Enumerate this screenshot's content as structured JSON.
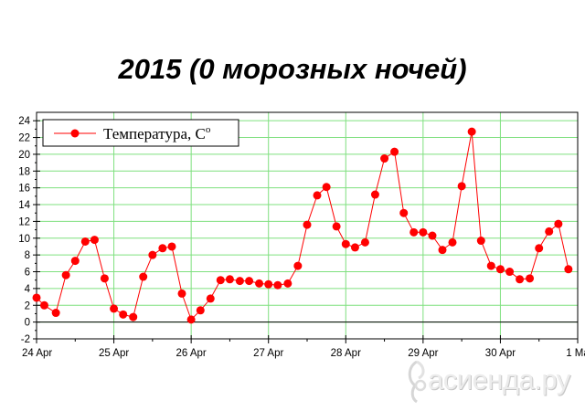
{
  "chart_data": {
    "type": "line",
    "title": "2015 (0 морозных ночей)",
    "xlabel": "",
    "ylabel": "",
    "ylim": [
      -2,
      25
    ],
    "xlim": [
      0,
      7
    ],
    "yticks": [
      -2,
      0,
      2,
      4,
      6,
      8,
      10,
      12,
      14,
      16,
      18,
      20,
      22,
      24
    ],
    "xtick_labels": [
      "24 Apr",
      "25 Apr",
      "26 Apr",
      "27 Apr",
      "28 Apr",
      "29 Apr",
      "30 Apr",
      "1 Ma"
    ],
    "grid": true,
    "legend_position": "top-left",
    "series": [
      {
        "name": "Температура, C",
        "name_superscript": "o",
        "color": "#ff0000",
        "x": [
          0.0,
          0.1,
          0.25,
          0.38,
          0.5,
          0.63,
          0.75,
          0.88,
          1.0,
          1.12,
          1.25,
          1.38,
          1.5,
          1.63,
          1.75,
          1.88,
          2.0,
          2.12,
          2.25,
          2.38,
          2.5,
          2.63,
          2.75,
          2.88,
          3.0,
          3.12,
          3.25,
          3.38,
          3.5,
          3.63,
          3.75,
          3.88,
          4.0,
          4.12,
          4.25,
          4.38,
          4.5,
          4.63,
          4.75,
          4.88,
          5.0,
          5.12,
          5.25,
          5.38,
          5.5,
          5.63,
          5.75,
          5.88,
          6.0,
          6.12,
          6.25,
          6.38,
          6.5,
          6.63,
          6.75,
          6.88
        ],
        "values": [
          2.9,
          2.0,
          1.1,
          5.6,
          7.3,
          9.6,
          9.8,
          5.2,
          1.6,
          0.9,
          0.6,
          5.4,
          8.0,
          8.8,
          9.0,
          3.4,
          0.3,
          1.4,
          2.8,
          5.0,
          5.1,
          4.9,
          4.9,
          4.6,
          4.5,
          4.4,
          4.6,
          6.7,
          11.6,
          15.1,
          16.1,
          11.4,
          9.3,
          8.9,
          9.5,
          15.2,
          19.5,
          20.3,
          13.0,
          10.7,
          10.7,
          10.3,
          8.6,
          9.5,
          16.2,
          22.7,
          9.7,
          6.7,
          6.3,
          6.0,
          5.1,
          5.2,
          8.8,
          10.8,
          11.7,
          6.3
        ]
      }
    ]
  },
  "watermark": {
    "text": "асиенда.ру"
  }
}
